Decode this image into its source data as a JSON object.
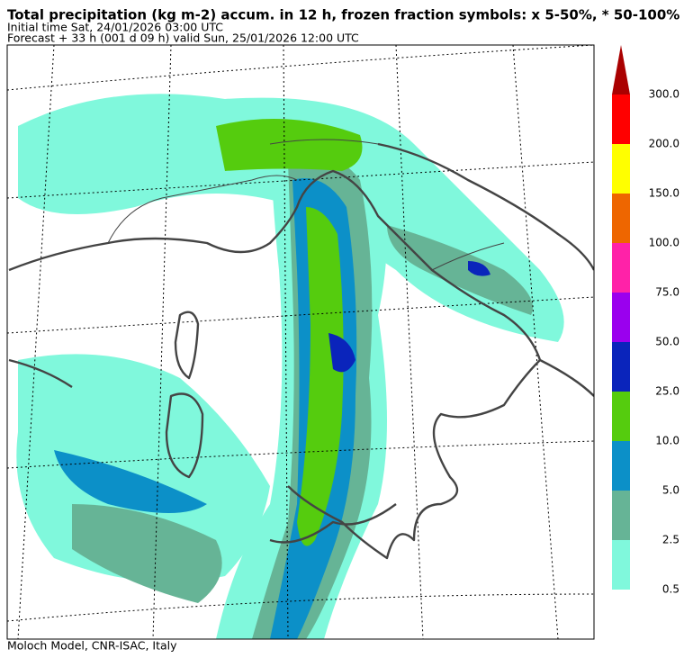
{
  "header": {
    "title": "Total precipitation (kg m-2) accum. in 12 h, frozen fraction symbols: x 5-50%, * 50-100%",
    "initial_time": "Initial time  Sat, 24/01/2026  03:00 UTC",
    "forecast": "Forecast  +  33 h  (001 d 09 h)  valid Sun, 25/01/2026 12:00 UTC"
  },
  "footer": "Moloch Model, CNR-ISAC, Italy",
  "colorbar": {
    "labels": [
      "0.5",
      "2.5",
      "5.0",
      "10.0",
      "25.0",
      "50.0",
      "75.0",
      "100.0",
      "150.0",
      "200.0",
      "300.0"
    ],
    "colors": [
      "#80f8dc",
      "#66b496",
      "#0c90c8",
      "#55cc0e",
      "#0a24bb",
      "#9a00ee",
      "#ff22a8",
      "#ee6600",
      "#ffff00",
      "#ff0000",
      "#aa0000"
    ]
  }
}
